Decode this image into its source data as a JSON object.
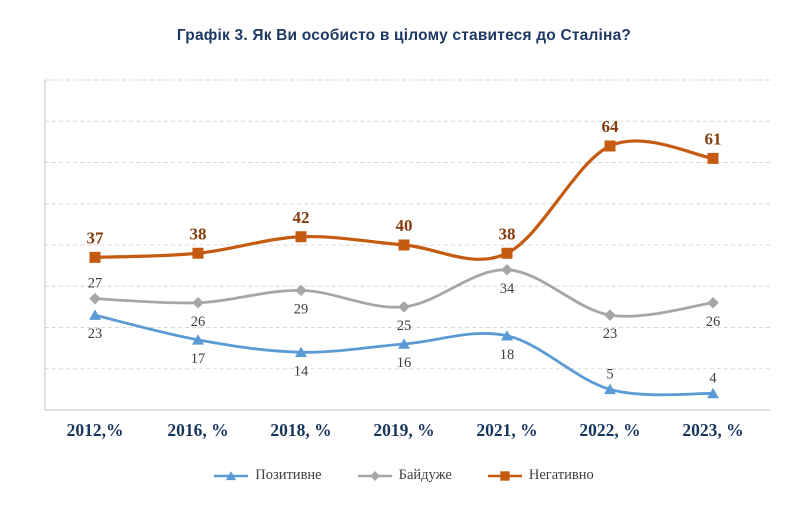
{
  "chart_data": {
    "type": "line",
    "title": "Графік 3. Як Ви особисто в цілому ставитеся до Сталіна?",
    "categories": [
      "2012,%",
      "2016, %",
      "2018, %",
      "2019, %",
      "2021, %",
      "2022, %",
      "2023, %"
    ],
    "series": [
      {
        "name": "Позитивне",
        "marker": "triangle",
        "color": "#5B9BD5",
        "values": [
          23,
          17,
          14,
          16,
          18,
          5,
          4
        ],
        "label_color": "#404040",
        "label_bold": false,
        "label_positions": [
          "below",
          "below",
          "below",
          "below",
          "below",
          "above",
          "above"
        ]
      },
      {
        "name": "Байдуже",
        "marker": "diamond",
        "color": "#A6A6A6",
        "values": [
          27,
          26,
          29,
          25,
          34,
          23,
          26
        ],
        "label_color": "#404040",
        "label_bold": false,
        "label_positions": [
          "above",
          "below",
          "below",
          "below",
          "below",
          "below",
          "below"
        ]
      },
      {
        "name": "Негативно",
        "marker": "square",
        "color": "#C55A11",
        "values": [
          37,
          38,
          42,
          40,
          38,
          64,
          61
        ],
        "label_color": "#843C0C",
        "label_bold": true,
        "label_positions": [
          "above",
          "above",
          "above",
          "above",
          "above",
          "above",
          "above"
        ]
      }
    ],
    "ylim": [
      0,
      80
    ],
    "grid_step": 10,
    "grid": true,
    "legend_position": "bottom",
    "axis_color": "#BFBFBF",
    "grid_color": "#D9D9D9",
    "title_color": "#1F3864",
    "x_label_color": "#17365D"
  }
}
